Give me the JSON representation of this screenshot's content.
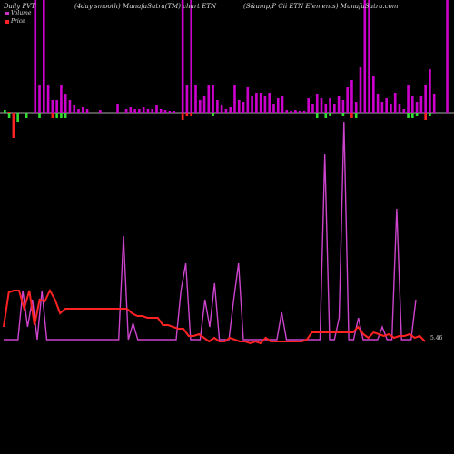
{
  "chart_data": {
    "type": "bar",
    "title_left": "Daily PVT",
    "title_center": "(4day smooth) MunafaSutra(TM) chart ETN",
    "title_right": "(S&amp;P Cii  ETN  Elements) MunafaSutra.com",
    "legend": [
      "Volume",
      "Price"
    ],
    "last_price_label": "5.46",
    "colors": {
      "volume": "#cc33cc",
      "price": "#ff2222",
      "pvt_line": "#cc44cc",
      "pos": "#cc00cc",
      "neg_red": "#ff2222",
      "neg_green": "#33dd33",
      "zero": "#aaaaaa"
    },
    "volume_bars": [
      3,
      1,
      0,
      0,
      0,
      0,
      0,
      60,
      30,
      60,
      30,
      14,
      14,
      30,
      20,
      14,
      8,
      4,
      6,
      4,
      0,
      0,
      3,
      0,
      0,
      0,
      10,
      0,
      4,
      6,
      4,
      4,
      6,
      4,
      4,
      8,
      4,
      3,
      2,
      2,
      0,
      60,
      30,
      60,
      30,
      14,
      18,
      30,
      30,
      14,
      8,
      4,
      6,
      30,
      14,
      12,
      28,
      18,
      22,
      22,
      18,
      22,
      10,
      16,
      18,
      3,
      2,
      3,
      2,
      2,
      16,
      10,
      20,
      16,
      10,
      16,
      10,
      18,
      14,
      28,
      36,
      12,
      50,
      56,
      66,
      40,
      20,
      12,
      16,
      10,
      22,
      10,
      4,
      30,
      18,
      12,
      18,
      30,
      48,
      20,
      0,
      0,
      60
    ],
    "volume_colors": [
      "g",
      "r",
      "g",
      "g",
      "g",
      "g",
      "g",
      "p",
      "p",
      "p",
      "p",
      "p",
      "p",
      "p",
      "p",
      "p",
      "p",
      "p",
      "p",
      "p",
      "g",
      "g",
      "p",
      "g",
      "g",
      "g",
      "p",
      "g",
      "p",
      "p",
      "p",
      "p",
      "p",
      "p",
      "p",
      "p",
      "p",
      "p",
      "p",
      "p",
      "g",
      "p",
      "p",
      "p",
      "p",
      "p",
      "p",
      "p",
      "p",
      "p",
      "p",
      "p",
      "p",
      "p",
      "p",
      "p",
      "p",
      "p",
      "p",
      "p",
      "p",
      "p",
      "p",
      "p",
      "p",
      "p",
      "p",
      "p",
      "p",
      "p",
      "p",
      "p",
      "p",
      "p",
      "p",
      "p",
      "p",
      "p",
      "p",
      "p",
      "p",
      "p",
      "p",
      "p",
      "p",
      "p",
      "p",
      "p",
      "p",
      "p",
      "p",
      "p",
      "p",
      "p",
      "p",
      "p",
      "p",
      "p",
      "p",
      "p",
      "p",
      "p",
      "p"
    ],
    "neg_bars": [
      0,
      6,
      28,
      10,
      0,
      6,
      0,
      0,
      6,
      0,
      0,
      6,
      6,
      6,
      6,
      0,
      0,
      0,
      0,
      0,
      0,
      0,
      0,
      0,
      0,
      0,
      0,
      0,
      0,
      0,
      0,
      0,
      0,
      0,
      0,
      0,
      0,
      0,
      0,
      0,
      0,
      8,
      4,
      4,
      0,
      0,
      0,
      0,
      4,
      0,
      0,
      0,
      0,
      0,
      0,
      0,
      0,
      0,
      0,
      0,
      0,
      0,
      0,
      0,
      0,
      0,
      0,
      0,
      0,
      0,
      0,
      0,
      6,
      0,
      6,
      4,
      0,
      0,
      4,
      0,
      6,
      6,
      0,
      0,
      0,
      0,
      0,
      0,
      0,
      0,
      0,
      0,
      0,
      6,
      6,
      4,
      0,
      8,
      4,
      0,
      0,
      0,
      0
    ],
    "neg_colors": [
      "g",
      "g",
      "r",
      "g",
      "g",
      "g",
      "g",
      "g",
      "g",
      "g",
      "g",
      "r",
      "g",
      "g",
      "g",
      "g",
      "g",
      "g",
      "g",
      "g",
      "g",
      "g",
      "g",
      "g",
      "g",
      "g",
      "g",
      "g",
      "g",
      "g",
      "g",
      "g",
      "g",
      "g",
      "g",
      "g",
      "g",
      "g",
      "g",
      "g",
      "g",
      "r",
      "r",
      "r",
      "g",
      "g",
      "g",
      "g",
      "g",
      "g",
      "g",
      "g",
      "g",
      "g",
      "g",
      "g",
      "g",
      "g",
      "g",
      "g",
      "g",
      "g",
      "g",
      "g",
      "g",
      "g",
      "g",
      "g",
      "g",
      "g",
      "g",
      "g",
      "g",
      "g",
      "g",
      "g",
      "g",
      "g",
      "g",
      "g",
      "r",
      "g",
      "g",
      "g",
      "g",
      "g",
      "g",
      "g",
      "g",
      "g",
      "g",
      "g",
      "g",
      "g",
      "g",
      "g",
      "g",
      "r",
      "g",
      "g",
      "g",
      "g",
      "g"
    ],
    "price": [
      360,
      322,
      320,
      320,
      340,
      320,
      358,
      330,
      332,
      320,
      330,
      345,
      340,
      340,
      340,
      340,
      340,
      340,
      340,
      340,
      340,
      340,
      340,
      340,
      340,
      345,
      348,
      348,
      350,
      350,
      350,
      358,
      358,
      360,
      362,
      362,
      370,
      370,
      368,
      372,
      376,
      372,
      376,
      376,
      372,
      374,
      376,
      376,
      378,
      376,
      378,
      372,
      376,
      376,
      376,
      376,
      376,
      376,
      376,
      374,
      366,
      366,
      366,
      366,
      366,
      366,
      366,
      366,
      366,
      360,
      368,
      372,
      366,
      368,
      370,
      368,
      372,
      370,
      370,
      368,
      372,
      370,
      376
    ],
    "pvt": [
      374,
      374,
      374,
      374,
      320,
      360,
      330,
      374,
      320,
      374,
      374,
      374,
      374,
      374,
      374,
      374,
      374,
      374,
      374,
      374,
      374,
      374,
      374,
      374,
      374,
      260,
      374,
      356,
      374,
      374,
      374,
      374,
      374,
      374,
      374,
      374,
      374,
      320,
      290,
      374,
      374,
      374,
      330,
      360,
      312,
      374,
      374,
      374,
      330,
      290,
      374,
      374,
      374,
      374,
      374,
      374,
      374,
      374,
      344,
      374,
      374,
      374,
      374,
      374,
      374,
      374,
      374,
      170,
      374,
      374,
      350,
      134,
      374,
      374,
      350,
      374,
      374,
      374,
      374,
      360,
      374,
      374,
      230,
      374,
      374,
      374,
      330
    ],
    "price_ylim": [
      300,
      400
    ]
  }
}
